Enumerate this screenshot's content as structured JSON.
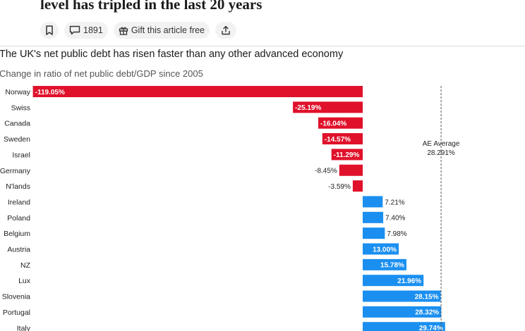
{
  "article": {
    "headline": "level has tripled in the last 20 years",
    "comment_count": "1891",
    "gift_label": "Gift this article free"
  },
  "icons": {
    "bookmark": "bookmark-icon",
    "comment": "comment-icon",
    "gift": "gift-icon",
    "share": "share-icon"
  },
  "chart_data": {
    "type": "bar",
    "orientation": "horizontal",
    "title": "The UK's net public debt has risen faster than any other advanced economy",
    "subtitle": "Change in ratio of net public debt/GDP since 2005",
    "categories": [
      "Norway",
      "Swiss",
      "Canada",
      "Sweden",
      "Israel",
      "Germany",
      "N'lands",
      "Ireland",
      "Poland",
      "Belgium",
      "Austria",
      "NZ",
      "Lux",
      "Slovenia",
      "Portugal",
      "Italy"
    ],
    "values": [
      -119.05,
      -25.19,
      -16.04,
      -14.57,
      -11.29,
      -8.45,
      -3.59,
      7.21,
      7.4,
      7.98,
      13.0,
      15.78,
      21.96,
      28.15,
      28.32,
      29.74
    ],
    "labels": [
      "-119.05%",
      "-25.19%",
      "-16.04%",
      "-14.57%",
      "-11.29%",
      "-8.45%",
      "-3.59%",
      "7.21%",
      "7.40%",
      "7.98%",
      "13.00%",
      "15.78%",
      "21.96%",
      "28.15%",
      "28.32%",
      "29.74%"
    ],
    "reference_line": {
      "label": "AE Average",
      "value_label": "28.291%",
      "value": 28.291
    },
    "colors": {
      "negative": "#e0112b",
      "positive": "#1a8ff0"
    },
    "xlim": [
      -119.05,
      30
    ]
  }
}
